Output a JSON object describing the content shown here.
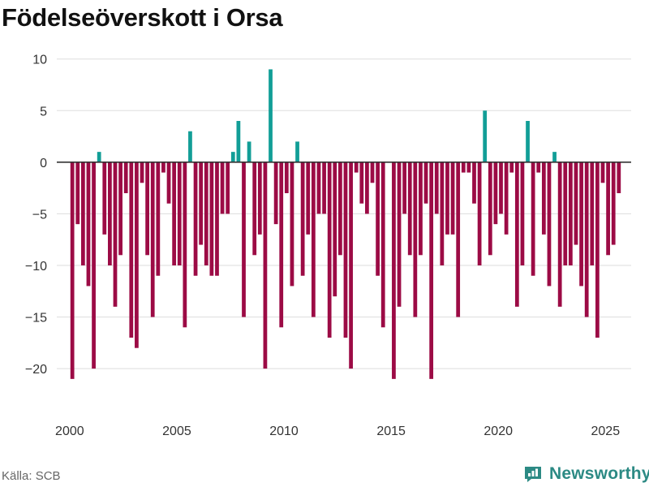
{
  "title": "Födelseöverskott i Orsa",
  "source": "Källa: SCB",
  "brand": {
    "name": "Newsworthy",
    "icon": "newsworthy-logo-icon"
  },
  "colors": {
    "positive": "#129e97",
    "negative": "#9c0b45",
    "grid": "#dddddd",
    "zero_line": "#333333",
    "brand": "#2c8a84"
  },
  "chart_data": {
    "type": "bar",
    "title": "Födelseöverskott i Orsa",
    "xlabel": "",
    "ylabel": "",
    "ylim": [
      -24,
      11
    ],
    "xlim": [
      1999.4,
      2026.2
    ],
    "y_ticks": [
      10,
      5,
      0,
      -5,
      -10,
      -15,
      -20
    ],
    "y_tick_labels": [
      "10",
      "5",
      "0",
      "−5",
      "−10",
      "−15",
      "−20"
    ],
    "x_ticks": [
      2000,
      2005,
      2010,
      2015,
      2020,
      2025
    ],
    "x_tick_labels": [
      "2000",
      "2005",
      "2010",
      "2015",
      "2020",
      "2025"
    ],
    "frequency": "quarterly",
    "start": 2000.125,
    "period": 0.25,
    "series": [
      {
        "name": "Födelseöverskott",
        "values": [
          -21,
          -6,
          -10,
          -12,
          -20,
          1,
          -7,
          -10,
          -14,
          -9,
          -3,
          -17,
          -18,
          -2,
          -9,
          -15,
          -11,
          -1,
          -4,
          -10,
          -10,
          -16,
          3,
          -11,
          -8,
          -10,
          -11,
          -11,
          -5,
          -5,
          1,
          4,
          -15,
          2,
          -9,
          -7,
          -20,
          9,
          -6,
          -16,
          -3,
          -12,
          2,
          -11,
          -7,
          -15,
          -5,
          -5,
          -17,
          -13,
          -9,
          -17,
          -20,
          -1,
          -4,
          -5,
          -2,
          -11,
          -16,
          0,
          -21,
          -14,
          -5,
          -9,
          -15,
          -9,
          -4,
          -21,
          -5,
          -10,
          -7,
          -7,
          -15,
          -1,
          -1,
          -4,
          -10,
          5,
          -9,
          -6,
          -5,
          -7,
          -1,
          -14,
          -10,
          4,
          -11,
          -1,
          -7,
          -12,
          1,
          -14,
          -10,
          -10,
          -8,
          -12,
          -15,
          -10,
          -17,
          -2,
          -9,
          -8,
          -3
        ]
      }
    ]
  }
}
